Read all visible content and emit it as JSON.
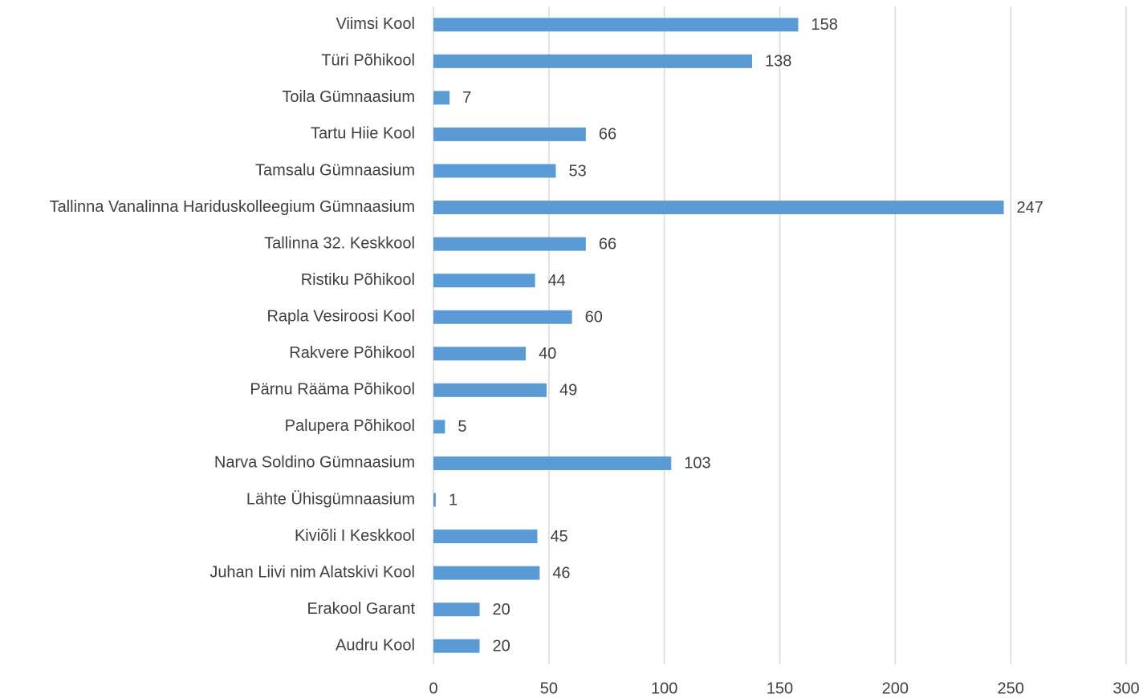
{
  "chart_data": {
    "type": "hbar",
    "categories": [
      "Viimsi Kool",
      "Türi Põhikool",
      "Toila Gümnaasium",
      "Tartu Hiie Kool",
      "Tamsalu Gümnaasium",
      "Tallinna Vanalinna Hariduskolleegium Gümnaasium",
      "Tallinna 32. Keskkool",
      "Ristiku Põhikool",
      "Rapla Vesiroosi Kool",
      "Rakvere Põhikool",
      "Pärnu Rääma Põhikool",
      "Palupera Põhikool",
      "Narva Soldino Gümnaasium",
      "Lähte Ühisgümnaasium",
      "Kiviõli I Keskkool",
      "Juhan Liivi nim Alatskivi Kool",
      "Erakool Garant",
      "Audru Kool"
    ],
    "values": [
      158,
      138,
      7,
      66,
      53,
      247,
      66,
      44,
      60,
      40,
      49,
      5,
      103,
      1,
      45,
      46,
      20,
      20
    ],
    "color": "#5b9bd5",
    "xlim": [
      0,
      300
    ],
    "xticks": [
      0,
      50,
      100,
      150,
      200,
      250,
      300
    ],
    "grid": true
  }
}
